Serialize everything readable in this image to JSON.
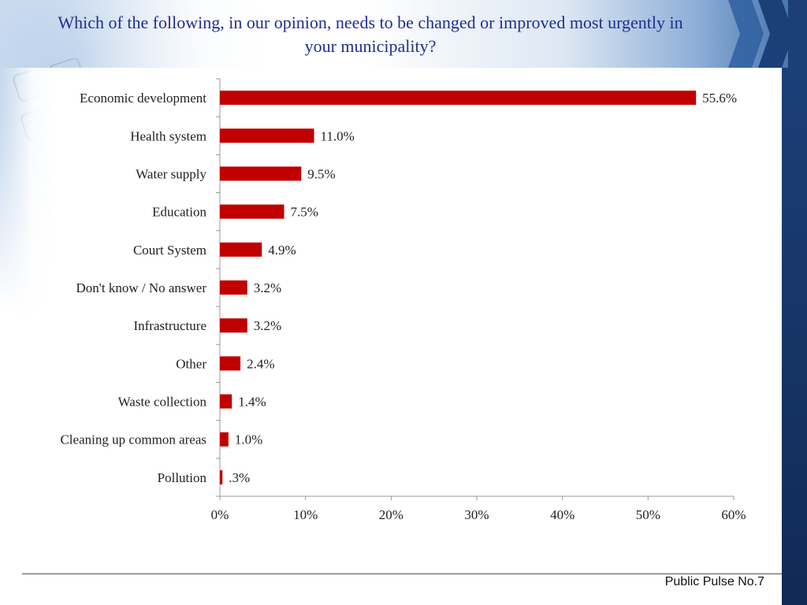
{
  "title": "Which of the following, in our opinion, needs to be changed or improved most urgently in your municipality?",
  "footer": "Public Pulse No.7",
  "colors": {
    "bar": "#c00000",
    "title": "#1f2f8f",
    "right_bar": "#1c3f78"
  },
  "chart_data": {
    "type": "bar",
    "orientation": "horizontal",
    "title": "Which of the following, in our opinion, needs to be changed or improved most urgently in your municipality?",
    "xlabel": "",
    "ylabel": "",
    "categories": [
      "Economic development",
      "Health system",
      "Water supply",
      "Education",
      "Court System",
      "Don't know / No answer",
      "Infrastructure",
      "Other",
      "Waste collection",
      "Cleaning up common areas",
      "Pollution"
    ],
    "values": [
      55.6,
      11.0,
      9.5,
      7.5,
      4.9,
      3.2,
      3.2,
      2.4,
      1.4,
      1.0,
      0.3
    ],
    "data_labels": [
      "55.6%",
      "11.0%",
      "9.5%",
      "7.5%",
      "4.9%",
      "3.2%",
      "3.2%",
      "2.4%",
      "1.4%",
      "1.0%",
      ".3%"
    ],
    "xlim": [
      0,
      60
    ],
    "xticks": [
      0,
      10,
      20,
      30,
      40,
      50,
      60
    ],
    "xtick_labels": [
      "0%",
      "10%",
      "20%",
      "30%",
      "40%",
      "50%",
      "60%"
    ],
    "grid": false,
    "legend": "none"
  }
}
